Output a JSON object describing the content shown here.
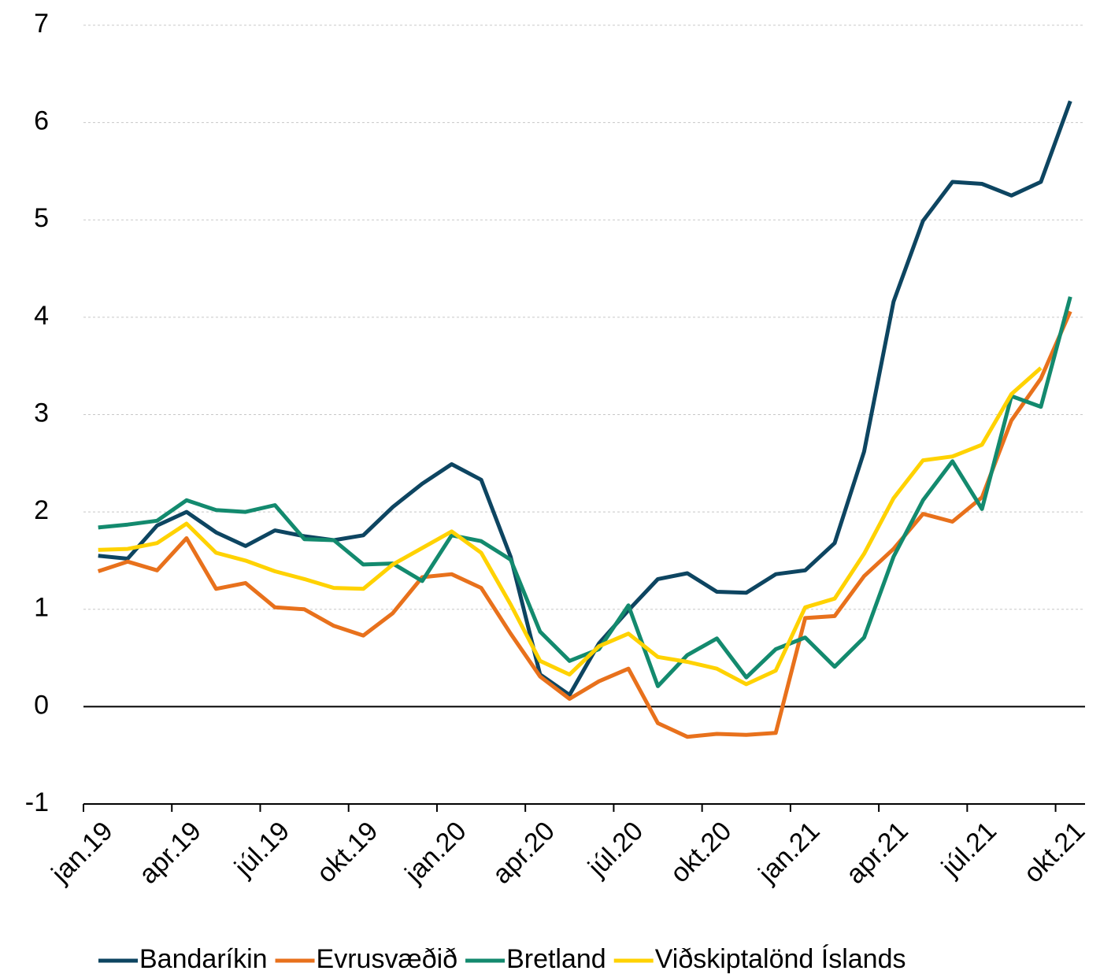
{
  "chart_data": {
    "type": "line",
    "categories": [
      "jan.19",
      null,
      null,
      "apr.19",
      null,
      null,
      "júl.19",
      null,
      null,
      "okt.19",
      null,
      null,
      "jan.20",
      null,
      null,
      "apr.20",
      null,
      null,
      "júl.20",
      null,
      null,
      "okt.20",
      null,
      null,
      "jan.21",
      null,
      null,
      "apr.21",
      null,
      null,
      "júl.21",
      null,
      null,
      "okt.21"
    ],
    "series": [
      {
        "name": "Bandaríkin",
        "color": "#0d4561",
        "values": [
          1.55,
          1.52,
          1.86,
          2.0,
          1.79,
          1.65,
          1.81,
          1.75,
          1.71,
          1.76,
          2.05,
          2.29,
          2.49,
          2.33,
          1.54,
          0.33,
          0.12,
          0.65,
          0.99,
          1.31,
          1.37,
          1.18,
          1.17,
          1.36,
          1.4,
          1.68,
          2.62,
          4.16,
          4.99,
          5.39,
          5.37,
          5.25,
          5.39,
          6.22
        ]
      },
      {
        "name": "Evrusvæðið",
        "color": "#e8711c",
        "values": [
          1.39,
          1.49,
          1.4,
          1.73,
          1.21,
          1.27,
          1.02,
          1.0,
          0.83,
          0.73,
          0.96,
          1.33,
          1.36,
          1.22,
          0.75,
          0.31,
          0.08,
          0.26,
          0.39,
          -0.17,
          -0.31,
          -0.28,
          -0.29,
          -0.27,
          0.91,
          0.93,
          1.34,
          1.62,
          1.98,
          1.9,
          2.15,
          2.94,
          3.37,
          4.06
        ]
      },
      {
        "name": "Bretland",
        "color": "#138a6e",
        "values": [
          1.84,
          1.87,
          1.91,
          2.12,
          2.02,
          2.0,
          2.07,
          1.72,
          1.71,
          1.46,
          1.47,
          1.29,
          1.76,
          1.7,
          1.51,
          0.77,
          0.47,
          0.59,
          1.04,
          0.21,
          0.53,
          0.7,
          0.3,
          0.59,
          0.71,
          0.41,
          0.71,
          1.54,
          2.12,
          2.52,
          2.03,
          3.19,
          3.08,
          4.21
        ]
      },
      {
        "name": "Viðskiptalönd Íslands",
        "color": "#ffd200",
        "values": [
          1.61,
          1.62,
          1.68,
          1.88,
          1.58,
          1.5,
          1.39,
          1.31,
          1.22,
          1.21,
          1.46,
          1.63,
          1.8,
          1.58,
          1.05,
          0.47,
          0.33,
          0.62,
          0.75,
          0.51,
          0.46,
          0.39,
          0.23,
          0.37,
          1.02,
          1.11,
          1.57,
          2.14,
          2.53,
          2.57,
          2.69,
          3.21,
          3.48,
          null
        ]
      }
    ],
    "ylim": [
      -1,
      7
    ],
    "yticks": [
      -1,
      0,
      1,
      2,
      3,
      4,
      5,
      6,
      7
    ],
    "grid": true,
    "legend": "bottom"
  }
}
